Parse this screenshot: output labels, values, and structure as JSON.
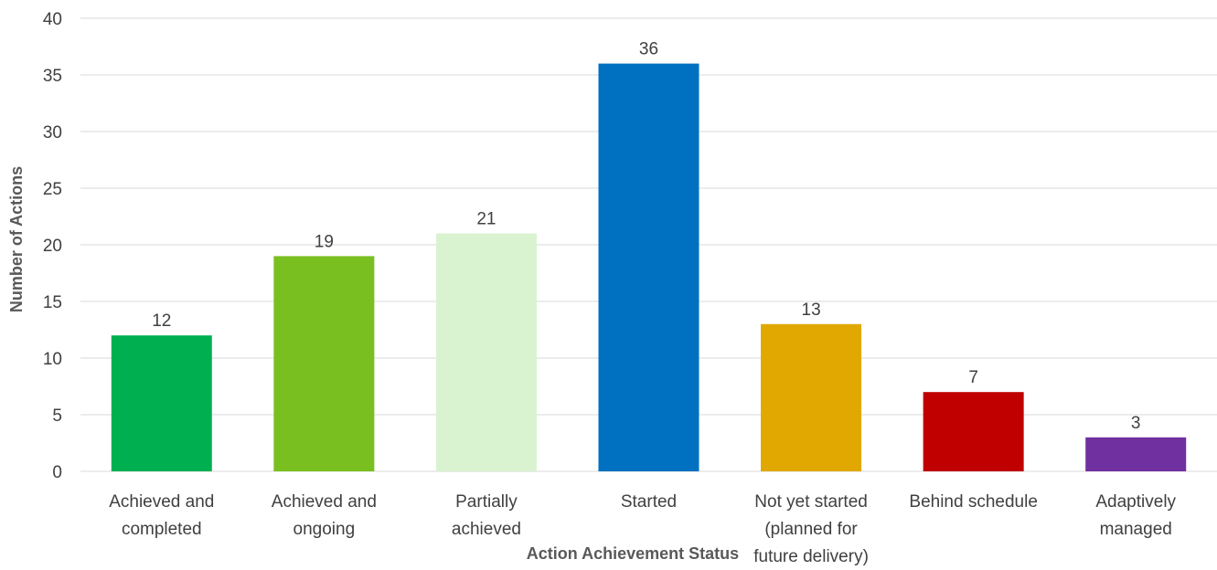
{
  "chart_data": {
    "type": "bar",
    "title": "",
    "xlabel": "Action Achievement Status",
    "ylabel": "Number of Actions",
    "ylim": [
      0,
      40
    ],
    "yticks": [
      0,
      5,
      10,
      15,
      20,
      25,
      30,
      35,
      40
    ],
    "grid": true,
    "legend": "none",
    "categories": [
      [
        "Achieved and",
        "completed"
      ],
      [
        "Achieved and",
        "ongoing"
      ],
      [
        "Partially",
        "achieved"
      ],
      [
        "Started"
      ],
      [
        "Not yet started",
        "(planned for",
        "future delivery)"
      ],
      [
        "Behind schedule"
      ],
      [
        "Adaptively",
        "managed"
      ]
    ],
    "values": [
      12,
      19,
      21,
      36,
      13,
      7,
      3
    ],
    "colors": [
      "#00b050",
      "#7abf20",
      "#d9f2d0",
      "#0070c0",
      "#e0a800",
      "#c00000",
      "#7030a0"
    ]
  }
}
